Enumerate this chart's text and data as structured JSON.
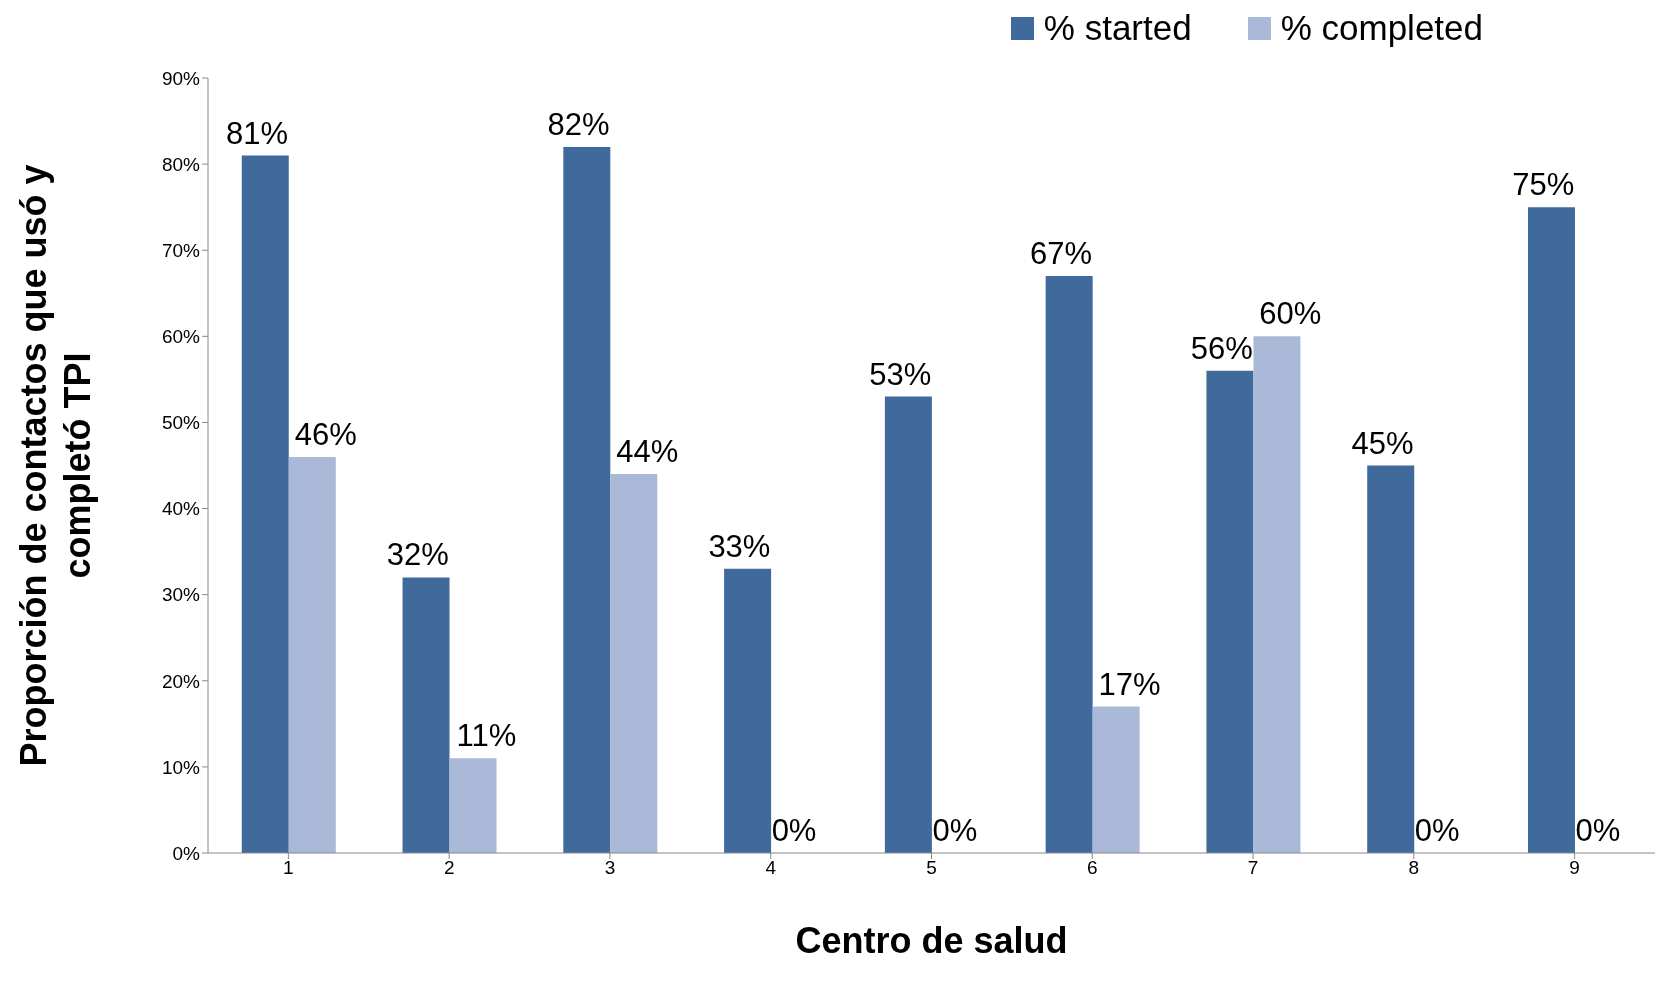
{
  "chart_data": {
    "type": "bar",
    "xlabel": "Centro de salud",
    "ylabel": "Proporción de contactos que usó y completó TPI",
    "categories": [
      "1",
      "2",
      "3",
      "4",
      "5",
      "6",
      "7",
      "8",
      "9"
    ],
    "series": [
      {
        "name": "% started",
        "color": "#416a9c",
        "values": [
          81,
          32,
          82,
          33,
          53,
          67,
          56,
          45,
          75
        ],
        "value_labels": [
          "81%",
          "32%",
          "82%",
          "33%",
          "53%",
          "67%",
          "56%",
          "45%",
          "75%"
        ]
      },
      {
        "name": "% completed",
        "color": "#aab9d8",
        "values": [
          46,
          11,
          44,
          0,
          0,
          17,
          60,
          0,
          0
        ],
        "value_labels": [
          "46%",
          "11%",
          "44%",
          "0%",
          "0%",
          "17%",
          "60%",
          "0%",
          "0%"
        ]
      }
    ],
    "ylim": [
      0,
      90
    ],
    "yticks": [
      {
        "value": 0,
        "label": "0%"
      },
      {
        "value": 10,
        "label": "10%"
      },
      {
        "value": 20,
        "label": "20%"
      },
      {
        "value": 30,
        "label": "30%"
      },
      {
        "value": 40,
        "label": "40%"
      },
      {
        "value": 50,
        "label": "50%"
      },
      {
        "value": 60,
        "label": "60%"
      },
      {
        "value": 70,
        "label": "70%"
      },
      {
        "value": 80,
        "label": "80%"
      },
      {
        "value": 90,
        "label": "90%"
      }
    ],
    "legend": "top right"
  }
}
